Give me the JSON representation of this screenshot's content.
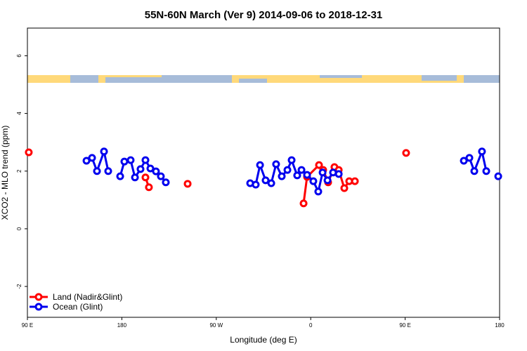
{
  "chart_data": {
    "type": "line",
    "title": "55N-60N March (Ver 9)   2014-09-06 to 2018-12-31",
    "x_label": "Longitude (deg E)",
    "y_label": "XCO2 - MLO trend (ppm)",
    "xlim": [
      90,
      540
    ],
    "xticks": [
      {
        "value": 90,
        "label": "90 E"
      },
      180,
      {
        "value": 270,
        "label": "90 W"
      },
      {
        "value": 360,
        "label": "0"
      },
      {
        "value": 450,
        "label": "90 E"
      },
      {
        "value": 540,
        "label": "180"
      }
    ],
    "ylim": [
      -3.07,
      6.96
    ],
    "yticks": [
      -2,
      0,
      2,
      4,
      6
    ],
    "legend": "bottom-left",
    "series": [
      {
        "name": "Land (Nadir&Glint)",
        "color": "#ff0000",
        "x": [
          91.3,
          null,
          202.5,
          205.8,
          null,
          242.7,
          null,
          353.2,
          356.5,
          367.9,
          371.9,
          376.6,
          382.6,
          386.7,
          392.0,
          396.7,
          402.1,
          null,
          450.9
        ],
        "values": [
          2.65,
          null,
          1.78,
          1.44,
          null,
          1.56,
          null,
          0.88,
          1.8,
          2.21,
          2.04,
          1.61,
          2.14,
          2.04,
          1.41,
          1.65,
          1.65,
          null,
          2.63
        ]
      },
      {
        "name": "Ocean (Glint)",
        "color": "#0000ee",
        "x": [
          146.3,
          151.6,
          156.3,
          163.0,
          167.0,
          null,
          178.4,
          182.4,
          188.4,
          192.5,
          197.8,
          202.5,
          207.2,
          212.5,
          217.2,
          221.9,
          null,
          302.3,
          307.6,
          311.7,
          317.0,
          322.4,
          327.0,
          332.4,
          337.8,
          341.8,
          347.1,
          351.2,
          356.5,
          362.5,
          367.2,
          371.3,
          376.0,
          381.3,
          386.7,
          null,
          505.9,
          511.2,
          515.9,
          523.2,
          527.3,
          null,
          538.7
        ],
        "values": [
          2.36,
          2.46,
          2.0,
          2.68,
          2.0,
          null,
          1.82,
          2.33,
          2.38,
          1.78,
          2.07,
          2.38,
          2.09,
          1.99,
          1.82,
          1.61,
          null,
          1.58,
          1.53,
          2.21,
          1.68,
          1.58,
          2.24,
          1.82,
          2.04,
          2.38,
          1.85,
          2.04,
          1.87,
          1.65,
          1.29,
          1.95,
          1.68,
          1.95,
          1.9,
          null,
          2.36,
          2.46,
          2.0,
          2.68,
          2.0,
          null,
          1.82
        ]
      }
    ]
  }
}
